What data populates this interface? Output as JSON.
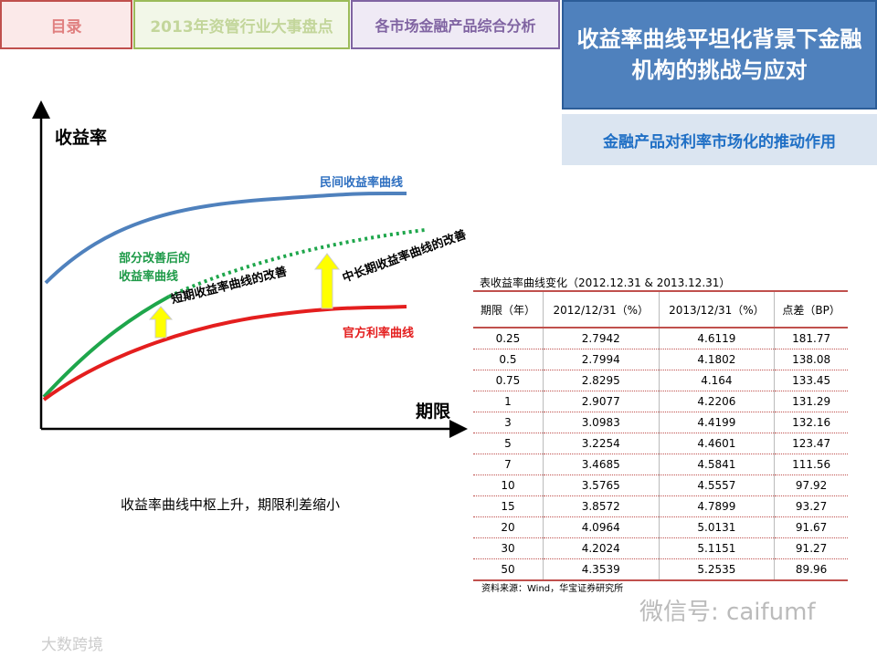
{
  "nav": {
    "tabs": [
      "目录",
      "2013年资管行业大事盘点",
      "各市场金融产品综合分析"
    ],
    "active": "收益率曲线平坦化背景下金融机构的挑战与应对",
    "subtitle": "金融产品对利率市场化的推动作用"
  },
  "diagram": {
    "y_axis": "收益率",
    "x_axis": "期限",
    "labels": [
      "民间收益率曲线",
      "部分改善后的收益率曲线",
      "短期收益率曲线的改善",
      "中长期收益率曲线的改善",
      "官方利率曲线"
    ],
    "caption": "收益率曲线中枢上升，期限利差缩小"
  },
  "table": {
    "title": "表收益率曲线变化（2012.12.31 & 2013.12.31）",
    "columns": [
      "期限（年）",
      "2012/12/31（%）",
      "2013/12/31（%）",
      "点差（BP）"
    ],
    "rows": [
      [
        0.25,
        2.7942,
        4.6119,
        181.77
      ],
      [
        0.5,
        2.7994,
        4.1802,
        138.08
      ],
      [
        0.75,
        2.8295,
        4.164,
        133.45
      ],
      [
        1,
        2.9077,
        4.2206,
        131.29
      ],
      [
        3,
        3.0983,
        4.4199,
        132.16
      ],
      [
        5,
        3.2254,
        4.4601,
        123.47
      ],
      [
        7,
        3.4685,
        4.5841,
        111.56
      ],
      [
        10,
        3.5765,
        4.5557,
        97.92
      ],
      [
        15,
        3.8572,
        4.7899,
        93.27
      ],
      [
        20,
        4.0964,
        5.0131,
        91.67
      ],
      [
        30,
        4.2024,
        5.1151,
        91.27
      ],
      [
        50,
        4.3539,
        5.2535,
        89.96
      ]
    ],
    "source": "资料来源：Wind，华宝证券研究所"
  },
  "watermarks": [
    "微信号: caifumf",
    "大数跨境"
  ]
}
